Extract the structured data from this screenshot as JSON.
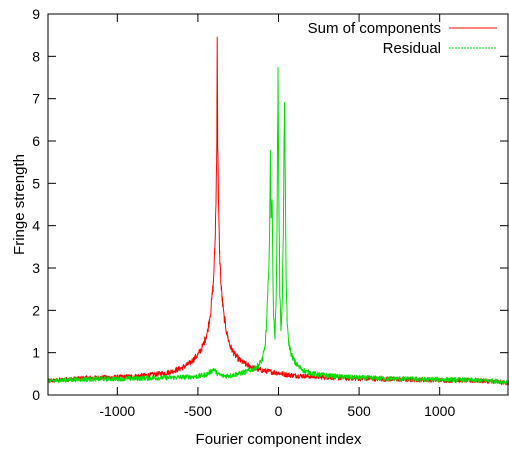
{
  "chart_data": {
    "type": "line",
    "title": "",
    "xlabel": "Fourier component index",
    "ylabel": "Fringe strength",
    "xlim": [
      -1430,
      1430
    ],
    "ylim": [
      0,
      9
    ],
    "xticks": [
      -1000,
      -500,
      0,
      500,
      1000
    ],
    "xtick_labels": [
      "-1000",
      "-500",
      "0",
      "500",
      "1000"
    ],
    "yticks": [
      0,
      1,
      2,
      3,
      4,
      5,
      6,
      7,
      8,
      9
    ],
    "ytick_labels": [
      "0",
      "1",
      "2",
      "3",
      "4",
      "5",
      "6",
      "7",
      "8",
      "9"
    ],
    "grid": false,
    "legend": {
      "position": "top-right"
    },
    "series": [
      {
        "name": "Sum of components",
        "color": "#ff0000",
        "style": "solid",
        "points": [
          [
            -1430,
            0.33
          ],
          [
            -1300,
            0.37
          ],
          [
            -1200,
            0.4
          ],
          [
            -1100,
            0.41
          ],
          [
            -1000,
            0.42
          ],
          [
            -900,
            0.44
          ],
          [
            -800,
            0.47
          ],
          [
            -700,
            0.52
          ],
          [
            -650,
            0.57
          ],
          [
            -600,
            0.64
          ],
          [
            -550,
            0.75
          ],
          [
            -500,
            0.95
          ],
          [
            -470,
            1.15
          ],
          [
            -440,
            1.5
          ],
          [
            -420,
            2.0
          ],
          [
            -405,
            2.6
          ],
          [
            -395,
            3.4
          ],
          [
            -388,
            4.5
          ],
          [
            -383,
            6.0
          ],
          [
            -380,
            8.2
          ],
          [
            -377,
            6.0
          ],
          [
            -372,
            4.4
          ],
          [
            -365,
            3.3
          ],
          [
            -355,
            2.5
          ],
          [
            -340,
            1.9
          ],
          [
            -320,
            1.45
          ],
          [
            -300,
            1.15
          ],
          [
            -270,
            0.95
          ],
          [
            -240,
            0.82
          ],
          [
            -200,
            0.72
          ],
          [
            -150,
            0.63
          ],
          [
            -100,
            0.58
          ],
          [
            -50,
            0.55
          ],
          [
            0,
            0.52
          ],
          [
            50,
            0.48
          ],
          [
            100,
            0.46
          ],
          [
            200,
            0.44
          ],
          [
            300,
            0.42
          ],
          [
            400,
            0.4
          ],
          [
            500,
            0.39
          ],
          [
            600,
            0.38
          ],
          [
            700,
            0.37
          ],
          [
            800,
            0.36
          ],
          [
            900,
            0.36
          ],
          [
            1000,
            0.35
          ],
          [
            1100,
            0.35
          ],
          [
            1200,
            0.34
          ],
          [
            1300,
            0.33
          ],
          [
            1430,
            0.28
          ]
        ]
      },
      {
        "name": "Residual",
        "color": "#00dd00",
        "style": "dashed",
        "points": [
          [
            -1430,
            0.33
          ],
          [
            -1300,
            0.36
          ],
          [
            -1200,
            0.37
          ],
          [
            -1100,
            0.38
          ],
          [
            -1000,
            0.38
          ],
          [
            -900,
            0.39
          ],
          [
            -800,
            0.4
          ],
          [
            -700,
            0.41
          ],
          [
            -600,
            0.42
          ],
          [
            -500,
            0.44
          ],
          [
            -450,
            0.48
          ],
          [
            -420,
            0.55
          ],
          [
            -400,
            0.62
          ],
          [
            -390,
            0.55
          ],
          [
            -370,
            0.48
          ],
          [
            -340,
            0.45
          ],
          [
            -300,
            0.46
          ],
          [
            -250,
            0.5
          ],
          [
            -200,
            0.55
          ],
          [
            -150,
            0.62
          ],
          [
            -120,
            0.72
          ],
          [
            -100,
            0.85
          ],
          [
            -85,
            1.1
          ],
          [
            -75,
            1.6
          ],
          [
            -65,
            2.5
          ],
          [
            -55,
            3.8
          ],
          [
            -50,
            5.7
          ],
          [
            -46,
            4.3
          ],
          [
            -40,
            4.5
          ],
          [
            -35,
            3.0
          ],
          [
            -30,
            1.8
          ],
          [
            -22,
            1.4
          ],
          [
            -15,
            2.2
          ],
          [
            -8,
            4.5
          ],
          [
            -3,
            7.6
          ],
          [
            2,
            5.0
          ],
          [
            8,
            2.4
          ],
          [
            15,
            1.6
          ],
          [
            22,
            2.0
          ],
          [
            30,
            3.8
          ],
          [
            37,
            7.1
          ],
          [
            42,
            4.8
          ],
          [
            48,
            2.6
          ],
          [
            55,
            1.6
          ],
          [
            65,
            1.2
          ],
          [
            80,
            0.95
          ],
          [
            100,
            0.78
          ],
          [
            130,
            0.65
          ],
          [
            170,
            0.55
          ],
          [
            220,
            0.5
          ],
          [
            300,
            0.46
          ],
          [
            400,
            0.43
          ],
          [
            500,
            0.41
          ],
          [
            600,
            0.4
          ],
          [
            700,
            0.39
          ],
          [
            800,
            0.38
          ],
          [
            900,
            0.37
          ],
          [
            1000,
            0.37
          ],
          [
            1100,
            0.36
          ],
          [
            1200,
            0.35
          ],
          [
            1300,
            0.34
          ],
          [
            1430,
            0.3
          ]
        ]
      }
    ]
  }
}
